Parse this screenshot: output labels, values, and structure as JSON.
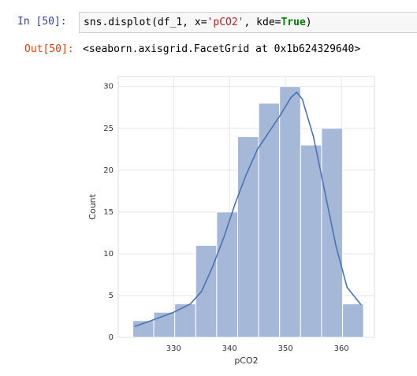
{
  "cells": [
    {
      "prompt": "In  [50]:",
      "code": [
        "sns.displot(df_1, x=",
        "'pCO2'",
        ", kde=",
        "True",
        ")"
      ]
    },
    {
      "prompt": "Out[50]:",
      "output": "<seaborn.axisgrid.FacetGrid at 0x1b624329640>"
    }
  ],
  "chart_data": {
    "type": "histogram",
    "xlabel": "pCO2",
    "ylabel": "Count",
    "bins": [
      322.7,
      326.45,
      330.2,
      333.95,
      337.7,
      341.45,
      345.2,
      348.95,
      352.7,
      356.45,
      360.2,
      363.95
    ],
    "counts": [
      2,
      3,
      4,
      11,
      15,
      24,
      28,
      30,
      23,
      25,
      4
    ],
    "color": "#a5b8d8",
    "kde": {
      "x": [
        323,
        326,
        330,
        333,
        335,
        337,
        339,
        341,
        343,
        345,
        347,
        349,
        351,
        352,
        353,
        355,
        357,
        359,
        361,
        363.5
      ],
      "y": [
        1.3,
        2,
        3,
        4,
        5.5,
        8.5,
        12,
        16,
        19.5,
        22.5,
        24.5,
        26.5,
        28.7,
        29.3,
        28.5,
        24,
        17.5,
        11,
        6,
        3.9
      ],
      "color": "#4c72b0"
    },
    "xlim": [
      320.1,
      365.9
    ],
    "ylim": [
      0,
      31.2
    ],
    "xticks": [
      330,
      340,
      350,
      360
    ],
    "yticks": [
      0,
      5,
      10,
      15,
      20,
      25,
      30
    ],
    "grid": true
  }
}
